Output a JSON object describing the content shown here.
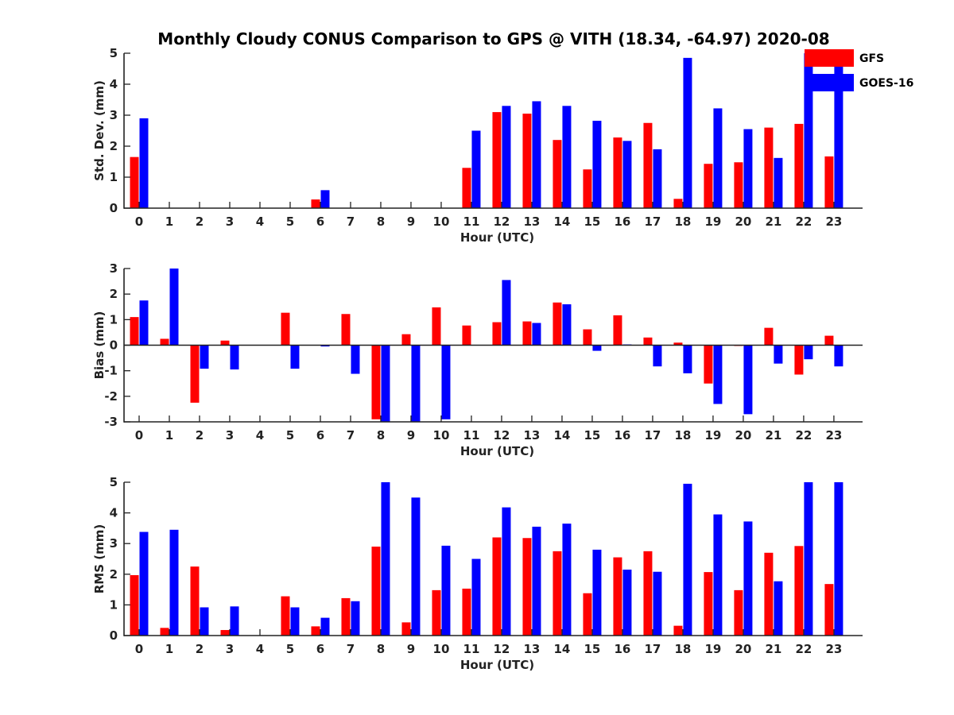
{
  "title": "Monthly Cloudy CONUS Comparison to GPS @ VITH (18.34, -64.97) 2020-08",
  "colors": {
    "GFS": "#ff0000",
    "GOES-16": "#0000ff",
    "axis": "#222222"
  },
  "legend": [
    "GFS",
    "GOES-16"
  ],
  "chart_data": [
    {
      "type": "bar",
      "xlabel": "Hour (UTC)",
      "ylabel": "Std. Dev. (mm)",
      "ylim": [
        0,
        5
      ],
      "yticks": [
        0,
        1,
        2,
        3,
        4,
        5
      ],
      "categories": [
        "0",
        "1",
        "2",
        "3",
        "4",
        "5",
        "6",
        "7",
        "8",
        "9",
        "10",
        "11",
        "12",
        "13",
        "14",
        "15",
        "16",
        "17",
        "18",
        "19",
        "20",
        "21",
        "22",
        "23"
      ],
      "series": [
        {
          "name": "GFS",
          "values": [
            1.65,
            0,
            0,
            0,
            0,
            0,
            0.28,
            0,
            0,
            0,
            0,
            1.3,
            3.1,
            3.05,
            2.2,
            1.25,
            2.28,
            2.75,
            0.3,
            1.43,
            1.48,
            2.6,
            2.72,
            1.67
          ]
        },
        {
          "name": "GOES-16",
          "values": [
            2.9,
            0,
            0,
            0,
            0,
            0,
            0.58,
            0,
            0,
            0,
            0,
            2.5,
            3.3,
            3.45,
            3.3,
            2.82,
            2.17,
            1.9,
            4.85,
            3.22,
            2.55,
            1.62,
            5.0,
            5.0
          ]
        }
      ]
    },
    {
      "type": "bar",
      "xlabel": "Hour (UTC)",
      "ylabel": "Bias (mm)",
      "ylim": [
        -3,
        3
      ],
      "yticks": [
        -3,
        -2,
        -1,
        0,
        1,
        2,
        3
      ],
      "categories": [
        "0",
        "1",
        "2",
        "3",
        "4",
        "5",
        "6",
        "7",
        "8",
        "9",
        "10",
        "11",
        "12",
        "13",
        "14",
        "15",
        "16",
        "17",
        "18",
        "19",
        "20",
        "21",
        "22",
        "23"
      ],
      "series": [
        {
          "name": "GFS",
          "values": [
            1.1,
            0.25,
            -2.25,
            0.18,
            0,
            1.27,
            0,
            1.22,
            -2.9,
            0.43,
            1.48,
            0.77,
            0.9,
            0.93,
            1.67,
            0.62,
            1.17,
            0.3,
            0.1,
            -1.5,
            -0.03,
            0.68,
            -1.15,
            0.37
          ]
        },
        {
          "name": "GOES-16",
          "values": [
            1.75,
            3.0,
            -0.92,
            -0.95,
            0,
            -0.92,
            -0.05,
            -1.12,
            -3.0,
            -3.0,
            -2.9,
            0,
            2.55,
            0.87,
            1.6,
            -0.22,
            0.03,
            -0.83,
            -1.1,
            -2.3,
            -2.7,
            -0.72,
            -0.55,
            -0.83
          ]
        }
      ]
    },
    {
      "type": "bar",
      "xlabel": "Hour (UTC)",
      "ylabel": "RMS (mm)",
      "ylim": [
        0,
        5
      ],
      "yticks": [
        0,
        1,
        2,
        3,
        4,
        5
      ],
      "categories": [
        "0",
        "1",
        "2",
        "3",
        "4",
        "5",
        "6",
        "7",
        "8",
        "9",
        "10",
        "11",
        "12",
        "13",
        "14",
        "15",
        "16",
        "17",
        "18",
        "19",
        "20",
        "21",
        "22",
        "23"
      ],
      "series": [
        {
          "name": "GFS",
          "values": [
            1.97,
            0.25,
            2.25,
            0.18,
            0,
            1.28,
            0.3,
            1.22,
            2.9,
            0.43,
            1.48,
            1.53,
            3.2,
            3.18,
            2.75,
            1.38,
            2.55,
            2.75,
            0.32,
            2.07,
            1.48,
            2.7,
            2.92,
            1.68
          ]
        },
        {
          "name": "GOES-16",
          "values": [
            3.38,
            3.45,
            0.92,
            0.95,
            0,
            0.92,
            0.58,
            1.12,
            5.0,
            4.5,
            2.93,
            2.5,
            4.18,
            3.55,
            3.65,
            2.8,
            2.15,
            2.08,
            4.95,
            3.95,
            3.72,
            1.77,
            5.0,
            5.0
          ]
        }
      ]
    }
  ]
}
